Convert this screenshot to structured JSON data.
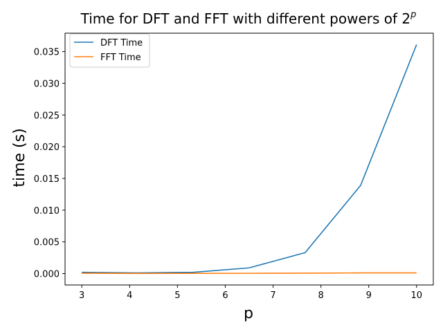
{
  "chart_data": {
    "type": "line",
    "title": "Time for DFT and FFT with different powers of 2",
    "title_superscript": "p",
    "xlabel": "p",
    "ylabel": "time (s)",
    "xlim": [
      2.65,
      10.35
    ],
    "ylim": [
      -0.0018,
      0.0379
    ],
    "xticks": [
      3,
      4,
      5,
      6,
      7,
      8,
      9,
      10
    ],
    "yticks": [
      0.0,
      0.005,
      0.01,
      0.015,
      0.02,
      0.025,
      0.03,
      0.035
    ],
    "ytick_labels": [
      "0.000",
      "0.005",
      "0.010",
      "0.015",
      "0.020",
      "0.025",
      "0.030",
      "0.035"
    ],
    "grid": false,
    "legend_position": "upper-left",
    "series": [
      {
        "name": "DFT Time",
        "color": "#1f77b4",
        "x": [
          3,
          4.17,
          5.33,
          6.5,
          7.67,
          8.83,
          10
        ],
        "y": [
          0.0002,
          0.0001,
          0.0002,
          0.0009,
          0.0033,
          0.0139,
          0.0361
        ]
      },
      {
        "name": "FFT Time",
        "color": "#ff7f0e",
        "x": [
          3,
          4.17,
          5.33,
          6.5,
          7.67,
          8.83,
          10
        ],
        "y": [
          5e-05,
          2e-05,
          3e-05,
          4e-05,
          6e-05,
          0.0001,
          0.0001
        ]
      }
    ]
  }
}
